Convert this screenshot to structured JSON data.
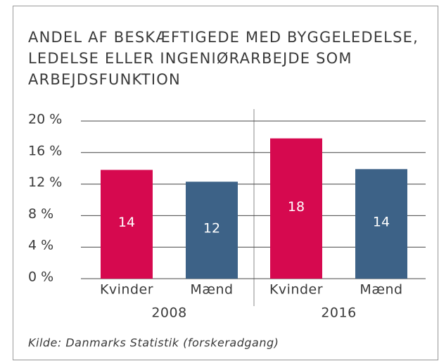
{
  "chart_data": {
    "type": "bar",
    "title": [
      "ANDEL AF BESKÆFTIGEDE MED BYGGELEDELSE,",
      "LEDELSE ELLER INGENIØRARBEJDE SOM",
      "ARBEJDSFUNKTION"
    ],
    "groups": [
      "2008",
      "2016"
    ],
    "categories": [
      "Kvinder",
      "Mænd",
      "Kvinder",
      "Mænd"
    ],
    "values": [
      13.8,
      12.3,
      17.8,
      13.9
    ],
    "value_labels": [
      "14",
      "12",
      "18",
      "14"
    ],
    "colors": [
      "#d6094f",
      "#3d6287",
      "#d6094f",
      "#3d6287"
    ],
    "ylim": [
      0,
      20
    ],
    "yticks": [
      {
        "value": 0,
        "label": "0 %"
      },
      {
        "value": 4,
        "label": "4 %"
      },
      {
        "value": 8,
        "label": "8 %"
      },
      {
        "value": 12,
        "label": "12 %"
      },
      {
        "value": 16,
        "label": "16 %"
      },
      {
        "value": 20,
        "label": "20 %"
      }
    ],
    "grid": true,
    "source": "Kilde: Danmarks Statistik (forskeradgang)"
  }
}
